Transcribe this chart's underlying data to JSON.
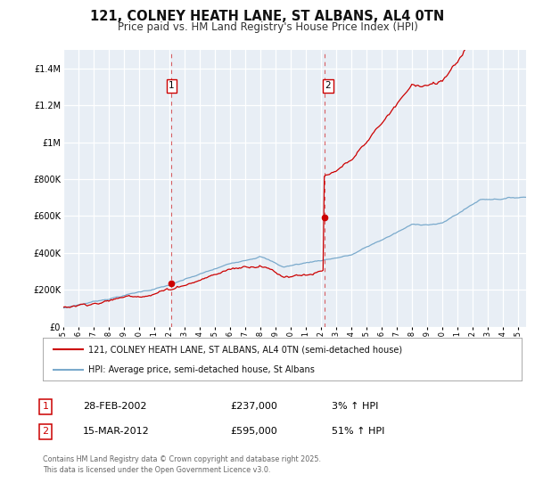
{
  "title": "121, COLNEY HEATH LANE, ST ALBANS, AL4 0TN",
  "subtitle": "Price paid vs. HM Land Registry's House Price Index (HPI)",
  "title_fontsize": 10.5,
  "subtitle_fontsize": 8.5,
  "background_color": "#ffffff",
  "plot_bg_color": "#e8eef5",
  "grid_color": "#ffffff",
  "red_line_color": "#cc0000",
  "blue_line_color": "#7aaacc",
  "marker_color": "#cc0000",
  "sale1_year": 2002.15,
  "sale1_price": 237000,
  "sale1_label": "1",
  "sale2_year": 2012.21,
  "sale2_price": 595000,
  "sale2_label": "2",
  "vline_color": "#cc0000",
  "ylim_min": 0,
  "ylim_max": 1500000,
  "xlim_min": 1995,
  "xlim_max": 2025.5,
  "yticks": [
    0,
    200000,
    400000,
    600000,
    800000,
    1000000,
    1200000,
    1400000
  ],
  "ytick_labels": [
    "£0",
    "£200K",
    "£400K",
    "£600K",
    "£800K",
    "£1M",
    "£1.2M",
    "£1.4M"
  ],
  "legend_red": "121, COLNEY HEATH LANE, ST ALBANS, AL4 0TN (semi-detached house)",
  "legend_blue": "HPI: Average price, semi-detached house, St Albans",
  "note1_label": "1",
  "note1_date": "28-FEB-2002",
  "note1_price": "£237,000",
  "note1_hpi": "3% ↑ HPI",
  "note2_label": "2",
  "note2_date": "15-MAR-2012",
  "note2_price": "£595,000",
  "note2_hpi": "51% ↑ HPI",
  "footer": "Contains HM Land Registry data © Crown copyright and database right 2025.\nThis data is licensed under the Open Government Licence v3.0."
}
